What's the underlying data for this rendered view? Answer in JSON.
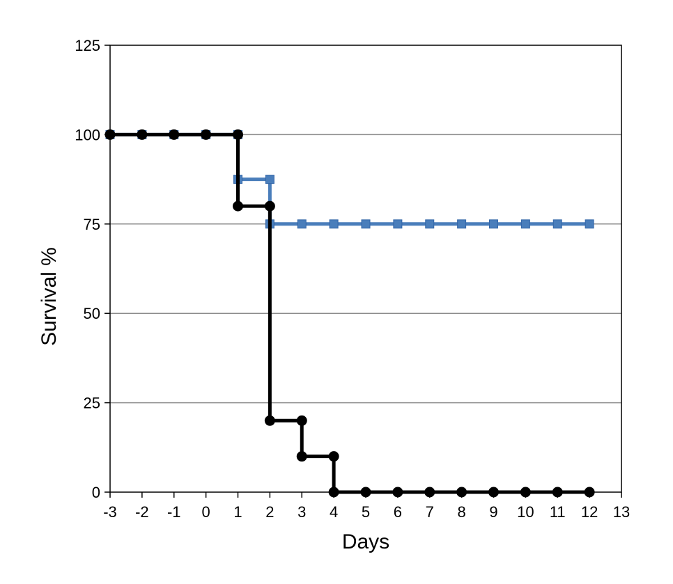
{
  "chart_data": {
    "type": "line",
    "title": "",
    "xlabel": "Days",
    "ylabel": "Survival %",
    "xlim": [
      -3,
      13
    ],
    "ylim": [
      0,
      125
    ],
    "xticks": [
      -3,
      -2,
      -1,
      0,
      1,
      2,
      3,
      4,
      5,
      6,
      7,
      8,
      9,
      10,
      11,
      12,
      13
    ],
    "yticks": [
      0,
      25,
      50,
      75,
      100,
      125
    ],
    "grid": "horizontal",
    "step": true,
    "series": [
      {
        "color": "#4a7ebb",
        "marker": "square",
        "points": [
          [
            -3,
            100
          ],
          [
            -2,
            100
          ],
          [
            -1,
            100
          ],
          [
            0,
            100
          ],
          [
            1,
            100
          ],
          [
            1,
            87.5
          ],
          [
            2,
            87.5
          ],
          [
            2,
            75
          ],
          [
            3,
            75
          ],
          [
            4,
            75
          ],
          [
            5,
            75
          ],
          [
            6,
            75
          ],
          [
            7,
            75
          ],
          [
            8,
            75
          ],
          [
            9,
            75
          ],
          [
            10,
            75
          ],
          [
            11,
            75
          ],
          [
            12,
            75
          ]
        ]
      },
      {
        "color": "#000000",
        "marker": "circle",
        "points": [
          [
            -3,
            100
          ],
          [
            -2,
            100
          ],
          [
            -1,
            100
          ],
          [
            0,
            100
          ],
          [
            1,
            100
          ],
          [
            1,
            80
          ],
          [
            2,
            80
          ],
          [
            2,
            20
          ],
          [
            3,
            20
          ],
          [
            3,
            10
          ],
          [
            4,
            10
          ],
          [
            4,
            0
          ],
          [
            5,
            0
          ],
          [
            6,
            0
          ],
          [
            7,
            0
          ],
          [
            8,
            0
          ],
          [
            9,
            0
          ],
          [
            10,
            0
          ],
          [
            11,
            0
          ],
          [
            12,
            0
          ]
        ]
      }
    ]
  }
}
